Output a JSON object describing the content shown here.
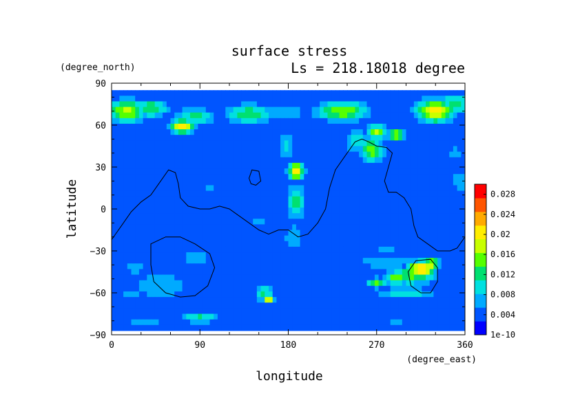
{
  "chart_data": {
    "type": "heatmap",
    "title": "surface stress",
    "subtitle": "Ls = 218.18018 degree",
    "xlabel": "longitude",
    "ylabel": "latitude",
    "x_unit": "(degree_east)",
    "y_unit": "(degree_north)",
    "xlim": [
      0,
      360
    ],
    "ylim": [
      -90,
      90
    ],
    "x_ticks": [
      0,
      90,
      180,
      270,
      360
    ],
    "y_ticks": [
      90,
      60,
      30,
      0,
      -30,
      -60,
      -90
    ],
    "data_lat_range": [
      -85,
      85
    ],
    "colorbar": {
      "range": [
        0,
        0.03
      ],
      "tick_labels": [
        "0.028",
        "0.024",
        "0.02",
        "0.016",
        "0.012",
        "0.008",
        "0.004",
        "1e-10"
      ],
      "tick_values": [
        0.028,
        0.024,
        0.02,
        0.016,
        0.012,
        0.008,
        0.004,
        0.0
      ],
      "colors": [
        "#0000ff",
        "#0055ff",
        "#00aaff",
        "#00e0e0",
        "#00e070",
        "#55ff00",
        "#c8ff00",
        "#ffee00",
        "#ffaa00",
        "#ff5500",
        "#ff0000"
      ]
    },
    "background_value": 0.0035,
    "features": [
      {
        "name": "north-polar-west",
        "lon": 15,
        "lat": 70,
        "value": 0.017,
        "rlon": 22,
        "rlat": 9
      },
      {
        "name": "north-polar-west-2",
        "lon": 40,
        "lat": 72,
        "value": 0.014,
        "rlon": 20,
        "rlat": 7
      },
      {
        "name": "north-59-65",
        "lon": 72,
        "lat": 59,
        "value": 0.022,
        "rlon": 12,
        "rlat": 5
      },
      {
        "name": "north-80-65",
        "lon": 85,
        "lat": 66,
        "value": 0.012,
        "rlon": 22,
        "rlat": 7
      },
      {
        "name": "north-140-68",
        "lon": 140,
        "lat": 68,
        "value": 0.013,
        "rlon": 28,
        "rlat": 8
      },
      {
        "name": "north-175-70",
        "lon": 178,
        "lat": 70,
        "value": 0.008,
        "rlon": 25,
        "rlat": 8
      },
      {
        "name": "north-230-70",
        "lon": 235,
        "lat": 70,
        "value": 0.016,
        "rlon": 30,
        "rlat": 8
      },
      {
        "name": "north-315-70",
        "lon": 330,
        "lat": 70,
        "value": 0.02,
        "rlon": 22,
        "rlat": 9
      },
      {
        "name": "north-345-75",
        "lon": 350,
        "lat": 75,
        "value": 0.013,
        "rlon": 18,
        "rlat": 8
      },
      {
        "name": "acidalia-1",
        "lon": 270,
        "lat": 55,
        "value": 0.017,
        "rlon": 10,
        "rlat": 6
      },
      {
        "name": "acidalia-2",
        "lon": 290,
        "lat": 53,
        "value": 0.018,
        "rlon": 10,
        "rlat": 5
      },
      {
        "name": "acidalia-3",
        "lon": 265,
        "lat": 42,
        "value": 0.015,
        "rlon": 14,
        "rlat": 10
      },
      {
        "name": "acidalia-4",
        "lon": 250,
        "lat": 48,
        "value": 0.01,
        "rlon": 15,
        "rlat": 10
      },
      {
        "name": "jet-27",
        "lon": 188,
        "lat": 27,
        "value": 0.021,
        "rlon": 9,
        "rlat": 7
      },
      {
        "name": "jet-column-1",
        "lon": 188,
        "lat": 5,
        "value": 0.012,
        "rlon": 10,
        "rlat": 16
      },
      {
        "name": "jet-column-2",
        "lon": 178,
        "lat": 45,
        "value": 0.009,
        "rlon": 10,
        "rlat": 14
      },
      {
        "name": "jet-column-3",
        "lon": 185,
        "lat": -20,
        "value": 0.008,
        "rlon": 12,
        "rlat": 12
      },
      {
        "name": "south-50-east",
        "lon": 305,
        "lat": -48,
        "value": 0.014,
        "rlon": 30,
        "rlat": 7
      },
      {
        "name": "south-45-max",
        "lon": 315,
        "lat": -43,
        "value": 0.024,
        "rlon": 14,
        "rlat": 6
      },
      {
        "name": "south-45-max-2",
        "lon": 325,
        "lat": -40,
        "value": 0.018,
        "rlon": 10,
        "rlat": 6
      },
      {
        "name": "south-55",
        "lon": 270,
        "lat": -53,
        "value": 0.016,
        "rlon": 10,
        "rlat": 4
      },
      {
        "name": "south-55-b",
        "lon": 290,
        "lat": -50,
        "value": 0.017,
        "rlon": 12,
        "rlat": 4
      },
      {
        "name": "south-60",
        "lon": 300,
        "lat": -60,
        "value": 0.01,
        "rlon": 35,
        "rlat": 5
      },
      {
        "name": "south-40-east",
        "lon": 280,
        "lat": -38,
        "value": 0.008,
        "rlon": 40,
        "rlat": 6
      },
      {
        "name": "south-65",
        "lon": 160,
        "lat": -64,
        "value": 0.02,
        "rlon": 6,
        "rlat": 4
      },
      {
        "name": "south-65-b",
        "lon": 155,
        "lat": -60,
        "value": 0.012,
        "rlon": 10,
        "rlat": 7
      },
      {
        "name": "south-west-55",
        "lon": 50,
        "lat": -55,
        "value": 0.008,
        "rlon": 40,
        "rlat": 12
      },
      {
        "name": "south-west-40",
        "lon": 85,
        "lat": -35,
        "value": 0.008,
        "rlon": 20,
        "rlat": 6
      },
      {
        "name": "south-west-45",
        "lon": 25,
        "lat": -42,
        "value": 0.007,
        "rlon": 15,
        "rlat": 8
      },
      {
        "name": "south-62",
        "lon": 20,
        "lat": -62,
        "value": 0.008,
        "rlon": 15,
        "rlat": 3
      },
      {
        "name": "south-80",
        "lon": 90,
        "lat": -78,
        "value": 0.012,
        "rlon": 22,
        "rlat": 4
      },
      {
        "name": "south-82-b",
        "lon": 35,
        "lat": -82,
        "value": 0.008,
        "rlon": 25,
        "rlat": 4
      },
      {
        "name": "south-80-east",
        "lon": 290,
        "lat": -80,
        "value": 0.006,
        "rlon": 40,
        "rlat": 4
      },
      {
        "name": "south-30-band",
        "lon": 280,
        "lat": -28,
        "value": 0.006,
        "rlon": 50,
        "rlat": 4
      },
      {
        "name": "east-20",
        "lon": 355,
        "lat": 20,
        "value": 0.008,
        "rlon": 10,
        "rlat": 10
      },
      {
        "name": "east-35",
        "lon": 350,
        "lat": 40,
        "value": 0.007,
        "rlon": 12,
        "rlat": 8
      },
      {
        "name": "west-20",
        "lon": 100,
        "lat": 15,
        "value": 0.006,
        "rlon": 10,
        "rlat": 8
      },
      {
        "name": "mid-0",
        "lon": 150,
        "lat": -10,
        "value": 0.006,
        "rlon": 20,
        "rlat": 6
      }
    ],
    "contours": [
      {
        "name": "topography-main",
        "closed": false,
        "points": [
          [
            0,
            -22
          ],
          [
            10,
            -12
          ],
          [
            20,
            -2
          ],
          [
            30,
            5
          ],
          [
            40,
            10
          ],
          [
            50,
            20
          ],
          [
            58,
            28
          ],
          [
            65,
            26
          ],
          [
            68,
            18
          ],
          [
            70,
            8
          ],
          [
            78,
            2
          ],
          [
            90,
            0
          ],
          [
            100,
            0
          ],
          [
            110,
            2
          ],
          [
            120,
            0
          ],
          [
            130,
            -5
          ],
          [
            140,
            -10
          ],
          [
            150,
            -15
          ],
          [
            160,
            -18
          ],
          [
            170,
            -15
          ],
          [
            180,
            -15
          ],
          [
            190,
            -20
          ],
          [
            200,
            -18
          ],
          [
            210,
            -10
          ],
          [
            218,
            0
          ],
          [
            222,
            15
          ],
          [
            228,
            28
          ],
          [
            238,
            38
          ],
          [
            248,
            48
          ],
          [
            255,
            50
          ],
          [
            262,
            48
          ],
          [
            270,
            45
          ],
          [
            280,
            44
          ],
          [
            286,
            40
          ],
          [
            282,
            30
          ],
          [
            278,
            20
          ],
          [
            282,
            12
          ],
          [
            290,
            12
          ],
          [
            298,
            8
          ],
          [
            305,
            0
          ],
          [
            308,
            -12
          ],
          [
            312,
            -20
          ],
          [
            322,
            -25
          ],
          [
            332,
            -30
          ],
          [
            345,
            -30
          ],
          [
            352,
            -28
          ],
          [
            360,
            -20
          ]
        ]
      },
      {
        "name": "topography-hellas",
        "closed": true,
        "points": [
          [
            40,
            -25
          ],
          [
            55,
            -20
          ],
          [
            70,
            -20
          ],
          [
            85,
            -25
          ],
          [
            100,
            -32
          ],
          [
            105,
            -42
          ],
          [
            98,
            -55
          ],
          [
            85,
            -62
          ],
          [
            70,
            -63
          ],
          [
            55,
            -60
          ],
          [
            43,
            -52
          ],
          [
            40,
            -40
          ]
        ]
      },
      {
        "name": "topography-argyre",
        "closed": true,
        "points": [
          [
            310,
            -37
          ],
          [
            325,
            -36
          ],
          [
            332,
            -42
          ],
          [
            332,
            -52
          ],
          [
            325,
            -60
          ],
          [
            315,
            -60
          ],
          [
            305,
            -55
          ],
          [
            302,
            -45
          ]
        ]
      },
      {
        "name": "topography-elysium",
        "closed": true,
        "points": [
          [
            143,
            28
          ],
          [
            150,
            27
          ],
          [
            152,
            20
          ],
          [
            147,
            17
          ],
          [
            142,
            18
          ],
          [
            140,
            22
          ]
        ]
      }
    ]
  }
}
